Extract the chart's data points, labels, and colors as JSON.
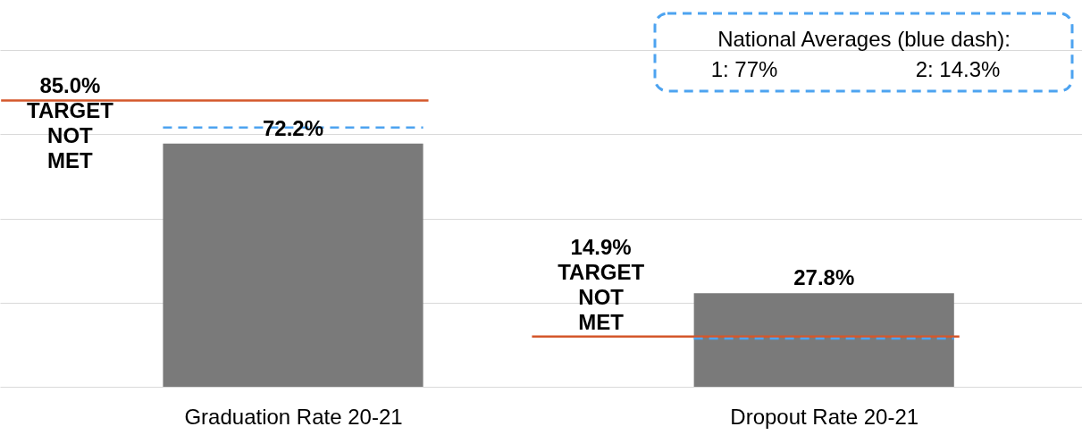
{
  "chart_data": {
    "type": "bar",
    "categories": [
      "Graduation Rate 20-21",
      "Dropout Rate 20-21"
    ],
    "values": [
      72.2,
      27.8
    ],
    "colors": [
      "#7a7a7a",
      "#7a7a7a"
    ],
    "value_labels": [
      "72.2%",
      "27.8%"
    ],
    "ylim": [
      0,
      100
    ],
    "yticks": [
      {
        "value": 0,
        "label": null
      },
      {
        "value": 25,
        "label": null
      },
      {
        "value": 50,
        "label": null
      },
      {
        "value": 75,
        "label": null
      },
      {
        "value": 100,
        "label": null
      }
    ],
    "tick_labels": "x",
    "grid": "y",
    "ref_lines": [
      {
        "axis": "y",
        "value": 85.0,
        "label": "85.0%\nTARGET\nNOT\nMET",
        "color": "#d4572b",
        "line_style": "solid"
      },
      {
        "axis": "y",
        "value": 14.9,
        "label": "14.9%\nTARGET\nNOT\nMET",
        "color": "#d4572b",
        "line_style": "solid"
      },
      {
        "axis": "y",
        "value": 77,
        "color": "#4da3f0",
        "line_style": "dashed"
      },
      {
        "axis": "y",
        "value": 14.3,
        "color": "#4da3f0",
        "line_style": "dashed"
      }
    ],
    "annotations": [
      "National Averages (blue dash):",
      "1: 77%",
      "2: 14.3%"
    ]
  }
}
